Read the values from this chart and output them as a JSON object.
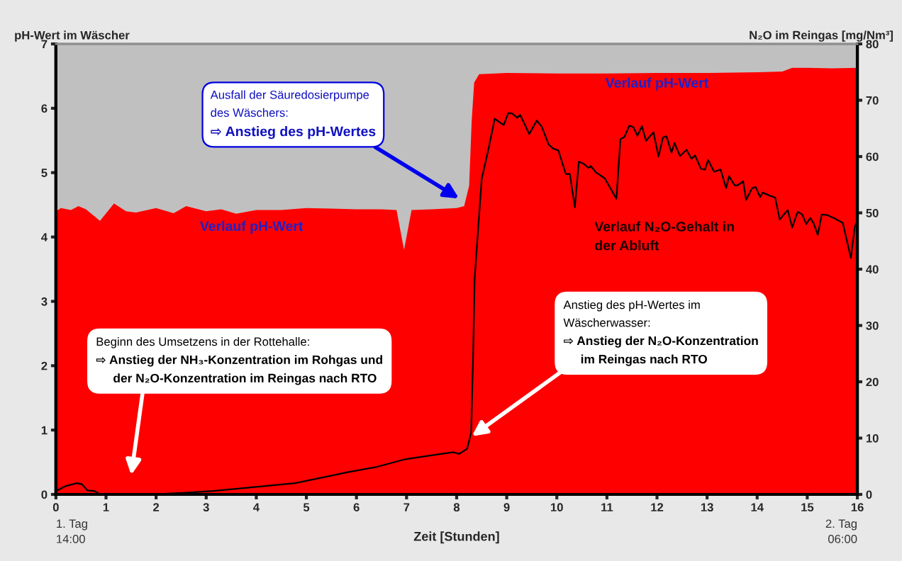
{
  "chart_data": {
    "type": "area",
    "xlabel": "Zeit [Stunden]",
    "ylabel": "pH-Wert im Wäscher",
    "y2label": "N₂O im Reingas [mg/Nm³]",
    "xlim": [
      0,
      16
    ],
    "xticks": [
      0,
      1,
      2,
      3,
      4,
      5,
      6,
      7,
      8,
      9,
      10,
      11,
      12,
      13,
      14,
      15,
      16
    ],
    "ylim": [
      0,
      7
    ],
    "yticks": [
      0,
      1,
      2,
      3,
      4,
      5,
      6,
      7
    ],
    "y2lim": [
      0,
      80
    ],
    "y2ticks": [
      0,
      10,
      20,
      30,
      40,
      50,
      60,
      70,
      80
    ],
    "series": [
      {
        "color": "#ff0000",
        "x": [
          0,
          0.1,
          0.3,
          0.45,
          0.6,
          0.88,
          1.16,
          1.4,
          1.6,
          2.0,
          2.35,
          2.6,
          3.0,
          3.3,
          3.6,
          4.0,
          4.5,
          5.0,
          5.5,
          6.0,
          6.5,
          6.8,
          6.95,
          7.1,
          7.5,
          8.0,
          8.15,
          8.25,
          8.3,
          8.35,
          8.45,
          9,
          10,
          11,
          12,
          13,
          14,
          14.5,
          14.7,
          15,
          15.5,
          16
        ],
        "values": [
          4.4,
          4.45,
          4.42,
          4.48,
          4.43,
          4.25,
          4.52,
          4.4,
          4.38,
          4.45,
          4.37,
          4.48,
          4.4,
          4.43,
          4.36,
          4.42,
          4.42,
          4.45,
          4.44,
          4.43,
          4.43,
          4.42,
          3.8,
          4.42,
          4.43,
          4.45,
          4.48,
          4.8,
          5.8,
          6.4,
          6.53,
          6.55,
          6.54,
          6.54,
          6.55,
          6.55,
          6.56,
          6.57,
          6.63,
          6.63,
          6.62,
          6.63
        ]
      },
      {
        "type": "line",
        "axis": "y2",
        "color": "#000000",
        "x": [
          0.0,
          0.2,
          0.42,
          0.52,
          0.63,
          0.77,
          0.88,
          1.9,
          2.6,
          3.14,
          3.96,
          4.77,
          5.32,
          5.86,
          6.41,
          6.95,
          7.61,
          7.93,
          8.05,
          8.21,
          8.29,
          8.33,
          8.36,
          8.5,
          8.63,
          8.76,
          8.94,
          9.03,
          9.1,
          9.21,
          9.27,
          9.45,
          9.6,
          9.7,
          9.84,
          9.93,
          10.03,
          10.18,
          10.26,
          10.36,
          10.44,
          10.54,
          10.63,
          10.68,
          10.78,
          10.96,
          11.19,
          11.27,
          11.35,
          11.45,
          11.53,
          11.61,
          11.7,
          11.78,
          11.93,
          12.03,
          12.12,
          12.19,
          12.29,
          12.35,
          12.46,
          12.59,
          12.69,
          12.76,
          12.88,
          12.96,
          13.02,
          13.14,
          13.27,
          13.38,
          13.44,
          13.55,
          13.61,
          13.72,
          13.78,
          13.9,
          13.97,
          14.06,
          14.11,
          14.24,
          14.36,
          14.45,
          14.61,
          14.7,
          14.81,
          14.9,
          14.98,
          15.06,
          15.13,
          15.21,
          15.29,
          15.4,
          15.53,
          15.71,
          15.87,
          15.95,
          16.0
        ],
        "values": [
          0.6,
          1.5,
          2.0,
          1.8,
          0.7,
          0.6,
          0,
          0,
          0.3,
          0.6,
          1.3,
          2.0,
          3.0,
          4.0,
          4.9,
          6.2,
          7.1,
          7.5,
          7.2,
          8.1,
          11,
          25,
          38.4,
          56.0,
          61.1,
          66.7,
          65.6,
          67.7,
          67.7,
          66.9,
          67.4,
          64.0,
          66.4,
          65.3,
          62.1,
          61.4,
          61.1,
          56.9,
          56.9,
          51.0,
          59.1,
          58.7,
          58.0,
          58.3,
          57.2,
          56.1,
          52.5,
          63.1,
          63.5,
          65.5,
          65.2,
          63.7,
          65.4,
          62.8,
          64.3,
          60.0,
          63.4,
          63.6,
          60.7,
          62.4,
          60.1,
          61.2,
          59.6,
          60.2,
          57.8,
          57.7,
          59.4,
          57.3,
          57.7,
          54.4,
          56.5,
          54.9,
          54.9,
          55.6,
          52.3,
          54.4,
          54.6,
          52.8,
          53.6,
          53.1,
          52.7,
          48.8,
          50.5,
          47.4,
          50.2,
          49.7,
          48.0,
          49.1,
          48.1,
          46.1,
          49.7,
          49.6,
          49.1,
          48.2,
          42.0,
          47.6,
          48.6
        ]
      }
    ],
    "annotations": [
      "1. Tag\n14:00",
      "2. Tag\n06:00",
      "Verlauf pH-Wert",
      "Verlauf pH-Wert",
      "Verlauf N₂O-Gehalt in\nder Abluft",
      "Ausfall der Säuredosierpumpe\ndes Wäschers:\n⇨ Anstieg des pH-Wertes",
      "Beginn des Umsetzens in der Rottehalle:\n⇨ Anstieg der NH₃-Konzentration im Rohgas und\nder N₂O-Konzentration im Reingas nach RTO",
      "Anstieg des pH-Wertes im\nWäscherwasser:\n⇨ Anstieg der N₂O-Konzentration\nim Reingas nach RTO"
    ]
  }
}
